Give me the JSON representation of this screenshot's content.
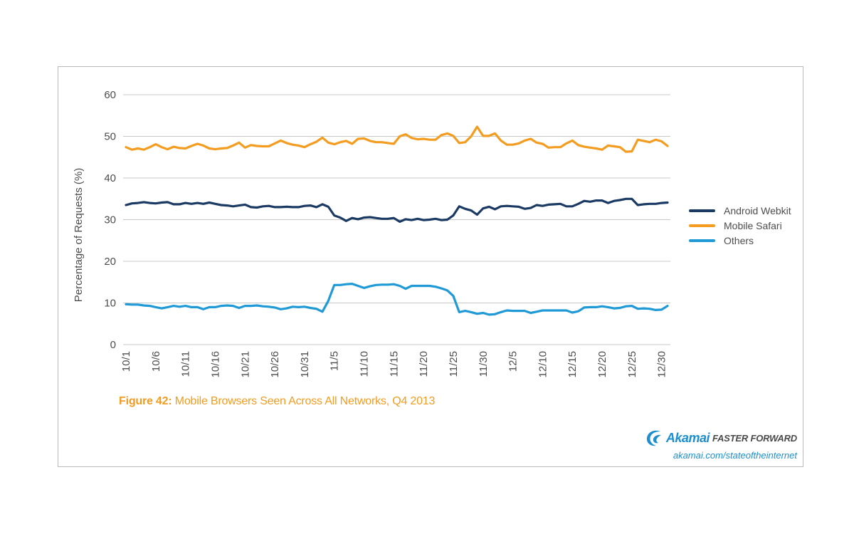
{
  "caption": {
    "label": "Figure 42:",
    "text": "Mobile Browsers Seen Across All Networks, Q4 2013"
  },
  "brand": {
    "name": "Akamai",
    "tagline": "FASTER FORWARD",
    "url": "akamai.com/stateoftheinternet",
    "color": "#1d8fcf"
  },
  "chart_data": {
    "type": "line",
    "ylabel": "Percentage of Requests (%)",
    "xlabel": "",
    "ylim": [
      0,
      60
    ],
    "yticks": [
      0,
      10,
      20,
      30,
      40,
      50,
      60
    ],
    "grid": true,
    "legend_position": "right",
    "x_tick_labels": [
      "10/1",
      "10/6",
      "10/11",
      "10/16",
      "10/21",
      "10/26",
      "10/31",
      "11/5",
      "11/10",
      "11/15",
      "11/20",
      "11/25",
      "11/30",
      "12/5",
      "12/10",
      "12/15",
      "12/20",
      "12/25",
      "12/30"
    ],
    "x_start": "10/1",
    "n_days": 92,
    "series": [
      {
        "name": "Android Webkit",
        "color": "#1b3a63",
        "values": [
          33.5,
          33.9,
          34.0,
          34.2,
          34.0,
          33.9,
          34.1,
          34.2,
          33.7,
          33.7,
          34.0,
          33.8,
          34.0,
          33.8,
          34.1,
          33.8,
          33.5,
          33.4,
          33.2,
          33.4,
          33.6,
          33.0,
          32.9,
          33.2,
          33.3,
          33.0,
          33.0,
          33.1,
          33.0,
          33.0,
          33.3,
          33.4,
          33.0,
          33.7,
          33.1,
          31.0,
          30.5,
          29.7,
          30.4,
          30.1,
          30.5,
          30.6,
          30.4,
          30.2,
          30.2,
          30.4,
          29.5,
          30.1,
          29.9,
          30.2,
          29.9,
          30.0,
          30.2,
          29.9,
          30.0,
          31.0,
          33.2,
          32.6,
          32.2,
          31.2,
          32.7,
          33.1,
          32.5,
          33.2,
          33.3,
          33.2,
          33.1,
          32.6,
          32.8,
          33.5,
          33.3,
          33.6,
          33.7,
          33.8,
          33.2,
          33.2,
          33.8,
          34.5,
          34.3,
          34.6,
          34.6,
          34.0,
          34.5,
          34.7,
          35.0,
          35.0,
          33.5,
          33.7,
          33.8,
          33.8,
          34.0,
          34.1
        ]
      },
      {
        "name": "Mobile Safari",
        "color": "#f39c1f",
        "values": [
          47.4,
          46.8,
          47.1,
          46.8,
          47.4,
          48.1,
          47.4,
          46.9,
          47.5,
          47.2,
          47.1,
          47.7,
          48.2,
          47.8,
          47.1,
          46.9,
          47.1,
          47.2,
          47.8,
          48.5,
          47.3,
          47.9,
          47.7,
          47.6,
          47.6,
          48.3,
          49.0,
          48.4,
          48.0,
          47.8,
          47.4,
          48.1,
          48.7,
          49.7,
          48.5,
          48.1,
          48.6,
          48.9,
          48.2,
          49.4,
          49.5,
          48.9,
          48.6,
          48.6,
          48.4,
          48.2,
          50.0,
          50.5,
          49.6,
          49.3,
          49.4,
          49.2,
          49.2,
          50.3,
          50.7,
          50.1,
          48.4,
          48.6,
          50.0,
          52.3,
          50.1,
          50.1,
          50.7,
          49.0,
          48.0,
          48.0,
          48.3,
          49.0,
          49.4,
          48.5,
          48.2,
          47.3,
          47.4,
          47.4,
          48.3,
          49.0,
          47.9,
          47.5,
          47.3,
          47.1,
          46.8,
          47.8,
          47.6,
          47.4,
          46.3,
          46.4,
          49.2,
          48.9,
          48.6,
          49.2,
          48.8,
          47.7
        ]
      },
      {
        "name": "Others",
        "color": "#1f9ad6",
        "values": [
          9.7,
          9.6,
          9.6,
          9.4,
          9.3,
          9.0,
          8.7,
          9.0,
          9.3,
          9.1,
          9.3,
          9.0,
          9.0,
          8.5,
          9.0,
          9.0,
          9.3,
          9.4,
          9.3,
          8.8,
          9.3,
          9.3,
          9.4,
          9.2,
          9.1,
          8.9,
          8.5,
          8.7,
          9.1,
          9.0,
          9.1,
          8.8,
          8.6,
          7.9,
          10.5,
          14.3,
          14.3,
          14.5,
          14.6,
          14.1,
          13.6,
          14.0,
          14.3,
          14.4,
          14.4,
          14.5,
          14.1,
          13.4,
          14.1,
          14.1,
          14.1,
          14.1,
          13.9,
          13.5,
          13.0,
          11.7,
          7.8,
          8.1,
          7.8,
          7.4,
          7.6,
          7.2,
          7.3,
          7.8,
          8.2,
          8.1,
          8.1,
          8.1,
          7.6,
          7.9,
          8.2,
          8.2,
          8.2,
          8.2,
          8.2,
          7.7,
          8.0,
          8.9,
          9.0,
          9.0,
          9.2,
          9.0,
          8.7,
          8.8,
          9.2,
          9.3,
          8.6,
          8.7,
          8.6,
          8.3,
          8.4,
          9.3
        ]
      }
    ]
  }
}
